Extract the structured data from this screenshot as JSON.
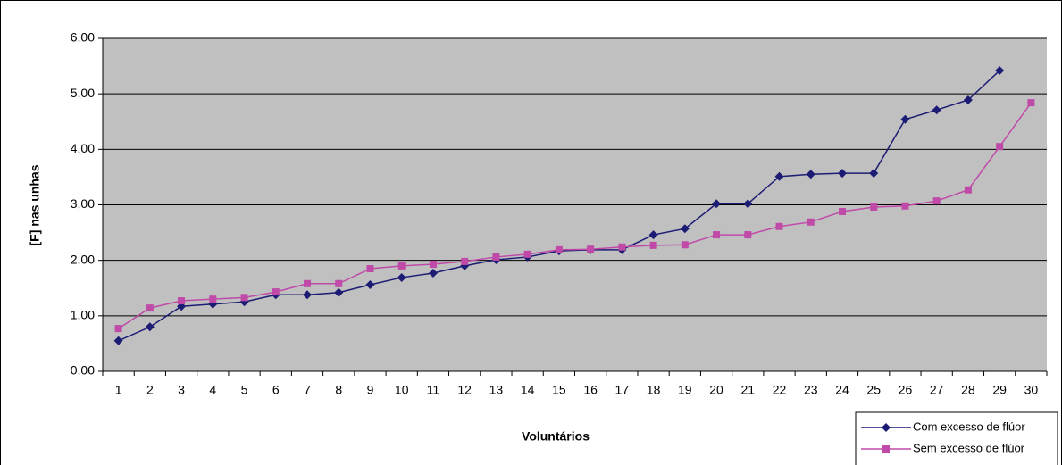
{
  "chart_data": {
    "type": "line",
    "ylabel": "[F] nas unhas",
    "xlabel": "Voluntários",
    "categories": [
      "1",
      "2",
      "3",
      "4",
      "5",
      "6",
      "7",
      "8",
      "9",
      "10",
      "11",
      "12",
      "13",
      "14",
      "15",
      "16",
      "17",
      "18",
      "19",
      "20",
      "21",
      "22",
      "23",
      "24",
      "25",
      "26",
      "27",
      "28",
      "29",
      "30"
    ],
    "series": [
      {
        "name": "Com excesso de flúor",
        "color": "#1c1c74",
        "marker": "diamond",
        "values": [
          0.55,
          0.8,
          1.17,
          1.21,
          1.25,
          1.38,
          1.38,
          1.42,
          1.56,
          1.69,
          1.77,
          1.9,
          2.01,
          2.06,
          2.17,
          2.19,
          2.19,
          2.46,
          2.57,
          3.02,
          3.02,
          3.51,
          3.55,
          3.57,
          3.57,
          4.54,
          4.71,
          4.89,
          5.42,
          null
        ]
      },
      {
        "name": "Sem excesso de flúor",
        "color": "#c04aa8",
        "marker": "square",
        "values": [
          0.77,
          1.14,
          1.27,
          1.3,
          1.33,
          1.43,
          1.58,
          1.58,
          1.85,
          1.9,
          1.93,
          1.98,
          2.06,
          2.11,
          2.19,
          2.2,
          2.24,
          2.27,
          2.28,
          2.46,
          2.46,
          2.61,
          2.69,
          2.88,
          2.96,
          2.98,
          3.07,
          3.27,
          4.05,
          4.84
        ]
      }
    ],
    "ylim": [
      0,
      6
    ],
    "yticks": [
      {
        "value": 0,
        "label": "0,00"
      },
      {
        "value": 1,
        "label": "1,00"
      },
      {
        "value": 2,
        "label": "2,00"
      },
      {
        "value": 3,
        "label": "3,00"
      },
      {
        "value": 4,
        "label": "4,00"
      },
      {
        "value": 5,
        "label": "5,00"
      },
      {
        "value": 6,
        "label": "6,00"
      }
    ],
    "grid": true,
    "plot_background": "#c0c0c0",
    "legend": "bottom-right"
  }
}
